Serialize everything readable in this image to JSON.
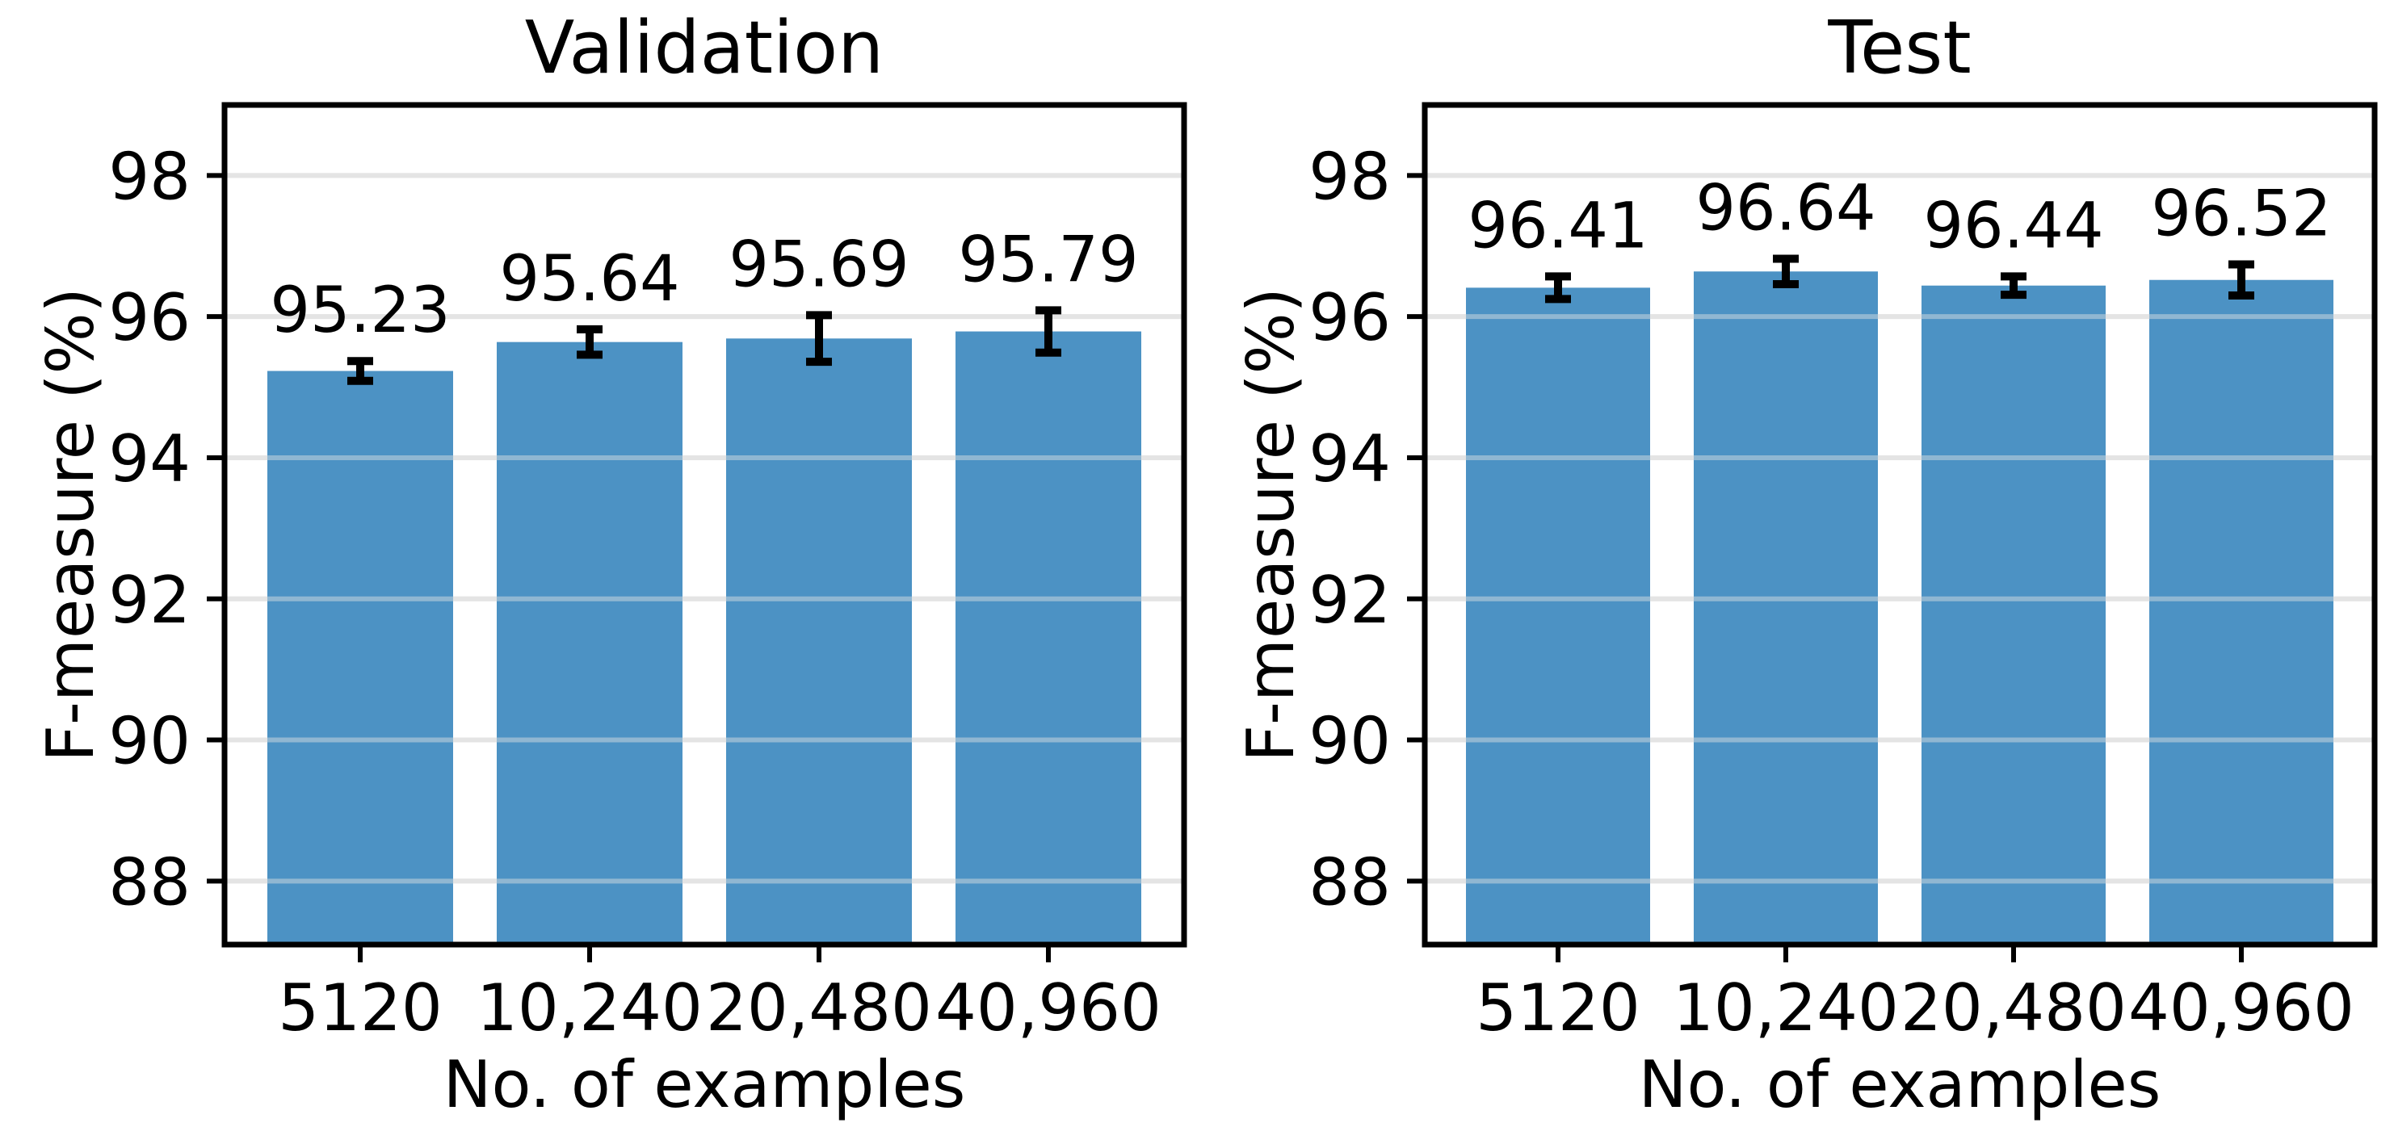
{
  "figure": {
    "background": "#ffffff",
    "axis_color": "#000000",
    "grid_color": "#e3e3e3",
    "text_color": "#000000"
  },
  "chart_data": [
    {
      "type": "bar",
      "title": "Validation",
      "xlabel": "No. of examples",
      "ylabel": "F-measure (%)",
      "categories": [
        "5120",
        "10,240",
        "20,480",
        "40,960"
      ],
      "values": [
        95.23,
        95.64,
        95.69,
        95.79
      ],
      "value_labels": [
        "95.23",
        "95.64",
        "95.69",
        "95.79"
      ],
      "errors": [
        0.14,
        0.18,
        0.33,
        0.3
      ],
      "yticks": [
        88,
        90,
        92,
        94,
        96,
        98
      ],
      "ytick_labels": [
        "88",
        "90",
        "92",
        "94",
        "96",
        "98"
      ],
      "ylim": [
        87.1,
        99.0
      ],
      "grid": true,
      "legend": "none",
      "bar_color": "#4C92C4",
      "error_color": "#000000"
    },
    {
      "type": "bar",
      "title": "Test",
      "xlabel": "No. of examples",
      "ylabel": "F-measure (%)",
      "categories": [
        "5120",
        "10,240",
        "20,480",
        "40,960"
      ],
      "values": [
        96.41,
        96.64,
        96.44,
        96.52
      ],
      "value_labels": [
        "96.41",
        "96.64",
        "96.44",
        "96.52"
      ],
      "errors": [
        0.16,
        0.18,
        0.13,
        0.22
      ],
      "yticks": [
        88,
        90,
        92,
        94,
        96,
        98
      ],
      "ytick_labels": [
        "88",
        "90",
        "92",
        "94",
        "96",
        "98"
      ],
      "ylim": [
        87.1,
        99.0
      ],
      "grid": true,
      "legend": "none",
      "bar_color": "#4C92C4",
      "error_color": "#000000"
    }
  ]
}
